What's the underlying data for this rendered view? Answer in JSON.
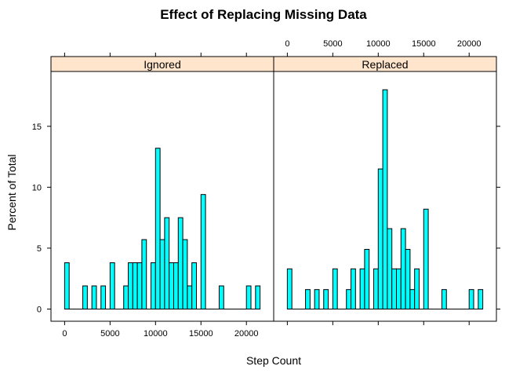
{
  "chart_data": {
    "type": "bar",
    "title": "Effect of Replacing Missing Data",
    "xlabel": "Step Count",
    "ylabel": "Percent of Total",
    "xlim": [
      -1500,
      23000
    ],
    "ylim": [
      -1,
      19.5
    ],
    "x_ticks": [
      0,
      5000,
      10000,
      15000,
      20000
    ],
    "y_ticks": [
      0,
      5,
      10,
      15
    ],
    "bin_width": 500,
    "grid": false,
    "legend": "none",
    "colors": {
      "bar_fill": "#00FFFF",
      "bar_stroke": "#000000",
      "strip_fill": "#FFE5CC"
    },
    "panels": [
      {
        "name": "Ignored",
        "bins": [
          {
            "x0": 0,
            "value": 3.8
          },
          {
            "x0": 2000,
            "value": 1.9
          },
          {
            "x0": 3000,
            "value": 1.9
          },
          {
            "x0": 4000,
            "value": 1.9
          },
          {
            "x0": 5000,
            "value": 3.8
          },
          {
            "x0": 6500,
            "value": 1.9
          },
          {
            "x0": 7000,
            "value": 3.8
          },
          {
            "x0": 7500,
            "value": 3.8
          },
          {
            "x0": 8000,
            "value": 3.8
          },
          {
            "x0": 8500,
            "value": 5.7
          },
          {
            "x0": 9500,
            "value": 3.8
          },
          {
            "x0": 10000,
            "value": 13.2
          },
          {
            "x0": 10500,
            "value": 5.7
          },
          {
            "x0": 11000,
            "value": 7.5
          },
          {
            "x0": 11500,
            "value": 3.8
          },
          {
            "x0": 12000,
            "value": 3.8
          },
          {
            "x0": 12500,
            "value": 7.5
          },
          {
            "x0": 13000,
            "value": 5.7
          },
          {
            "x0": 13500,
            "value": 1.9
          },
          {
            "x0": 14000,
            "value": 3.8
          },
          {
            "x0": 15000,
            "value": 9.4
          },
          {
            "x0": 17000,
            "value": 1.9
          },
          {
            "x0": 20000,
            "value": 1.9
          },
          {
            "x0": 21000,
            "value": 1.9
          }
        ]
      },
      {
        "name": "Replaced",
        "bins": [
          {
            "x0": 0,
            "value": 3.3
          },
          {
            "x0": 2000,
            "value": 1.6
          },
          {
            "x0": 3000,
            "value": 1.6
          },
          {
            "x0": 4000,
            "value": 1.6
          },
          {
            "x0": 5000,
            "value": 3.3
          },
          {
            "x0": 6500,
            "value": 1.6
          },
          {
            "x0": 7000,
            "value": 3.3
          },
          {
            "x0": 8000,
            "value": 3.3
          },
          {
            "x0": 8500,
            "value": 4.9
          },
          {
            "x0": 9500,
            "value": 3.3
          },
          {
            "x0": 10000,
            "value": 11.5
          },
          {
            "x0": 10500,
            "value": 18.0
          },
          {
            "x0": 11000,
            "value": 6.6
          },
          {
            "x0": 11500,
            "value": 3.3
          },
          {
            "x0": 12000,
            "value": 3.3
          },
          {
            "x0": 12500,
            "value": 6.6
          },
          {
            "x0": 13000,
            "value": 4.9
          },
          {
            "x0": 13500,
            "value": 1.6
          },
          {
            "x0": 14000,
            "value": 3.3
          },
          {
            "x0": 15000,
            "value": 8.2
          },
          {
            "x0": 17000,
            "value": 1.6
          },
          {
            "x0": 20000,
            "value": 1.6
          },
          {
            "x0": 21000,
            "value": 1.6
          }
        ]
      }
    ]
  }
}
